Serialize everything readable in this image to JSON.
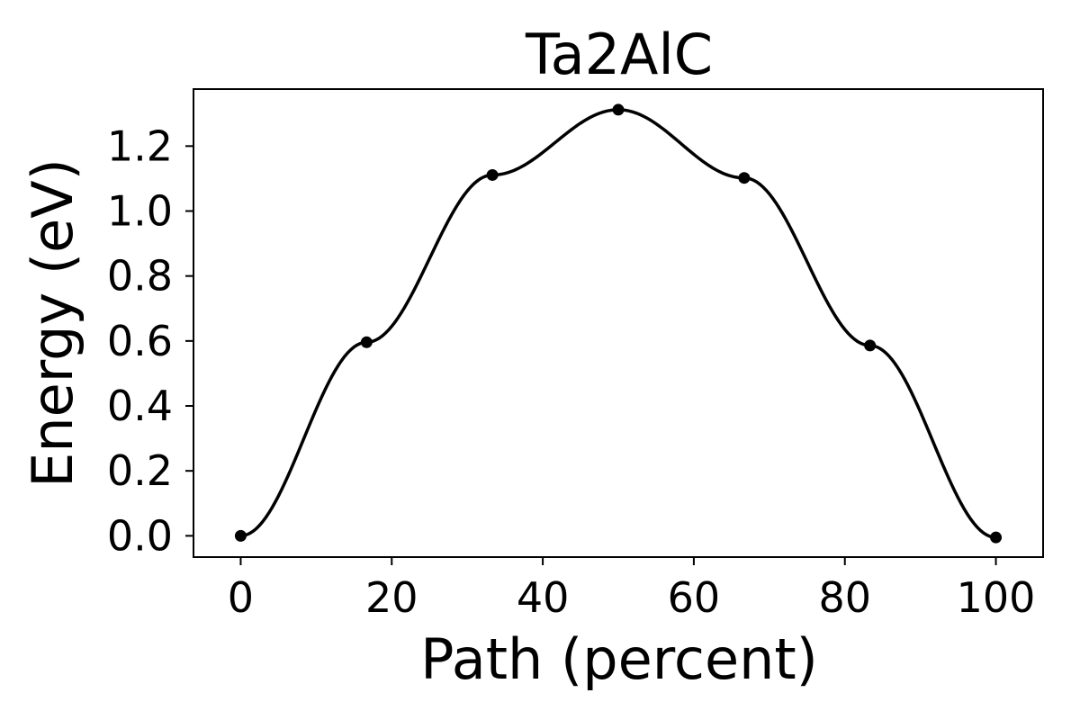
{
  "chart_data": {
    "type": "line",
    "title": "Ta2AlC",
    "xlabel": "Path (percent)",
    "ylabel": "Energy (eV)",
    "xlim": [
      -6.25,
      106.25
    ],
    "ylim": [
      -0.0655,
      1.3755
    ],
    "xticks": [
      0,
      20,
      40,
      60,
      80,
      100
    ],
    "yticks": [
      0.0,
      0.2,
      0.4,
      0.6,
      0.8,
      1.0,
      1.2
    ],
    "xtick_labels": [
      "0",
      "20",
      "40",
      "60",
      "80",
      "100"
    ],
    "ytick_labels": [
      "0.0",
      "0.2",
      "0.4",
      "0.6",
      "0.8",
      "1.0",
      "1.2"
    ],
    "grid": false,
    "series": [
      {
        "color": "#000000",
        "marker": "circle",
        "points": [
          {
            "x": 0,
            "y": 0.0
          },
          {
            "x": 16.67,
            "y": 0.596
          },
          {
            "x": 33.33,
            "y": 1.111
          },
          {
            "x": 50.0,
            "y": 1.312
          },
          {
            "x": 66.67,
            "y": 1.102
          },
          {
            "x": 83.33,
            "y": 0.586
          },
          {
            "x": 100,
            "y": -0.005
          }
        ]
      }
    ]
  }
}
